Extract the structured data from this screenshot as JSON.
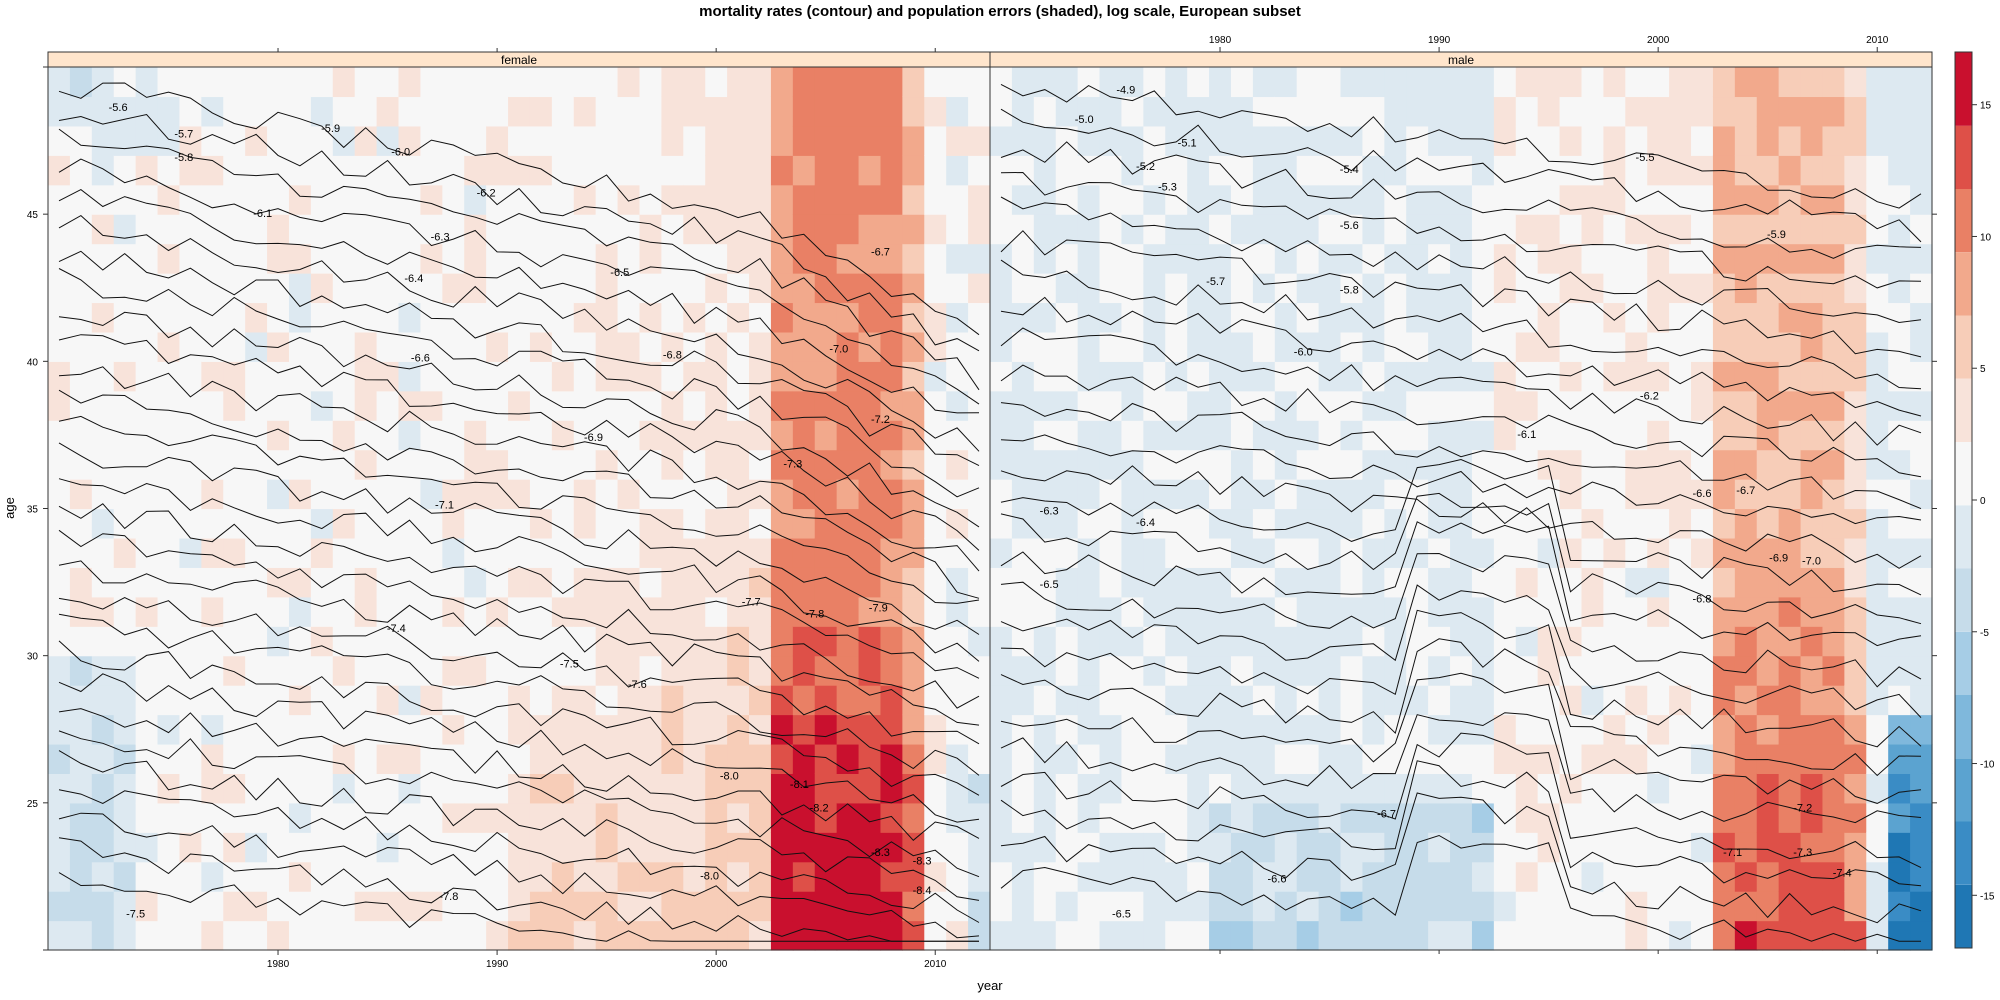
{
  "chart_data": {
    "type": "heatmap",
    "title": "mortality rates (contour) and population errors (shaded), log scale, European subset",
    "xlabel": "year",
    "ylabel": "age",
    "xlim": [
      1970,
      2012
    ],
    "ylim": [
      20,
      50
    ],
    "x_ticks": [
      1980,
      1990,
      2000,
      2010
    ],
    "y_ticks": [
      25,
      30,
      35,
      40,
      45
    ],
    "colorkey": {
      "range": [
        -17,
        17
      ],
      "ticks": [
        -15,
        -10,
        -5,
        0,
        5,
        10,
        15
      ],
      "bands": [
        {
          "from": -17,
          "to": -14.6,
          "color": "#1f77b4"
        },
        {
          "from": -14.6,
          "to": -12.2,
          "color": "#3a8cc5"
        },
        {
          "from": -12.2,
          "to": -9.8,
          "color": "#5ba3d0"
        },
        {
          "from": -9.8,
          "to": -7.4,
          "color": "#7fb8dc"
        },
        {
          "from": -7.4,
          "to": -5.0,
          "color": "#a6cde6"
        },
        {
          "from": -5.0,
          "to": -2.6,
          "color": "#c6dcea"
        },
        {
          "from": -2.6,
          "to": -0.2,
          "color": "#dde9f1"
        },
        {
          "from": -0.2,
          "to": 2.2,
          "color": "#f7f7f7"
        },
        {
          "from": 2.2,
          "to": 4.6,
          "color": "#f8e3da"
        },
        {
          "from": 4.6,
          "to": 7.0,
          "color": "#f7cdb8"
        },
        {
          "from": 7.0,
          "to": 9.4,
          "color": "#f2a98c"
        },
        {
          "from": 9.4,
          "to": 11.8,
          "color": "#e98065"
        },
        {
          "from": 11.8,
          "to": 14.2,
          "color": "#de5048"
        },
        {
          "from": 14.2,
          "to": 17,
          "color": "#c9102e"
        }
      ]
    },
    "panels": [
      {
        "strip": "female",
        "contour_levels": [
          -5.6,
          -5.7,
          -5.8,
          -5.9,
          -6.0,
          -6.1,
          -6.2,
          -6.3,
          -6.4,
          -6.5,
          -6.6,
          -6.7,
          -6.8,
          -6.9,
          -7.0,
          -7.1,
          -7.2,
          -7.3,
          -7.4,
          -7.5,
          -7.6,
          -7.7,
          -7.8,
          -7.9,
          -8.0,
          -8.1,
          -8.2,
          -8.3,
          -8.4
        ],
        "contour_labels": [
          {
            "text": "-5.6",
            "year": 1972.7,
            "age": 48.6
          },
          {
            "text": "-5.7",
            "year": 1975.7,
            "age": 47.7
          },
          {
            "text": "-5.8",
            "year": 1975.7,
            "age": 46.9
          },
          {
            "text": "-5.9",
            "year": 1982.4,
            "age": 47.9
          },
          {
            "text": "-6.0",
            "year": 1985.6,
            "age": 47.1
          },
          {
            "text": "-6.1",
            "year": 1979.3,
            "age": 45.0
          },
          {
            "text": "-6.2",
            "year": 1989.5,
            "age": 45.7
          },
          {
            "text": "-6.3",
            "year": 1987.4,
            "age": 44.2
          },
          {
            "text": "-6.4",
            "year": 1986.2,
            "age": 42.8
          },
          {
            "text": "-6.5",
            "year": 1995.6,
            "age": 43.0
          },
          {
            "text": "-6.6",
            "year": 1986.5,
            "age": 40.1
          },
          {
            "text": "-6.7",
            "year": 2007.5,
            "age": 43.7
          },
          {
            "text": "-6.8",
            "year": 1998.0,
            "age": 40.2
          },
          {
            "text": "-6.9",
            "year": 1994.4,
            "age": 37.4
          },
          {
            "text": "-7.0",
            "year": 2005.6,
            "age": 40.4
          },
          {
            "text": "-7.1",
            "year": 1987.6,
            "age": 35.1
          },
          {
            "text": "-7.2",
            "year": 2007.5,
            "age": 38.0
          },
          {
            "text": "-7.3",
            "year": 2003.5,
            "age": 36.5
          },
          {
            "text": "-7.4",
            "year": 1985.4,
            "age": 30.9
          },
          {
            "text": "-7.5",
            "year": 1993.3,
            "age": 29.7
          },
          {
            "text": "-7.6",
            "year": 1996.4,
            "age": 29.0
          },
          {
            "text": "-7.7",
            "year": 2001.6,
            "age": 31.8
          },
          {
            "text": "-7.8",
            "year": 2004.5,
            "age": 31.4
          },
          {
            "text": "-7.9",
            "year": 2007.4,
            "age": 31.6
          },
          {
            "text": "-8.0",
            "year": 2000.6,
            "age": 25.9
          },
          {
            "text": "-8.1",
            "year": 2003.8,
            "age": 25.6
          },
          {
            "text": "-8.2",
            "year": 2004.7,
            "age": 24.8
          },
          {
            "text": "-8.3",
            "year": 2007.5,
            "age": 23.3
          },
          {
            "text": "-8.3",
            "year": 2009.4,
            "age": 23.0
          },
          {
            "text": "-8.4",
            "year": 2009.4,
            "age": 22.0
          },
          {
            "text": "-8.0",
            "year": 1999.7,
            "age": 22.5
          },
          {
            "text": "-7.8",
            "year": 1987.8,
            "age": 21.8
          },
          {
            "text": "-7.5",
            "year": 1973.5,
            "age": 21.2
          }
        ]
      },
      {
        "strip": "male",
        "contour_levels": [
          -4.9,
          -5.0,
          -5.1,
          -5.2,
          -5.3,
          -5.4,
          -5.5,
          -5.6,
          -5.7,
          -5.8,
          -5.9,
          -6.0,
          -6.1,
          -6.2,
          -6.3,
          -6.4,
          -6.5,
          -6.6,
          -6.7,
          -6.8,
          -6.9,
          -7.0,
          -7.1,
          -7.2,
          -7.3,
          -7.4
        ],
        "contour_labels": [
          {
            "text": "-4.9",
            "year": 1975.7,
            "age": 49.2
          },
          {
            "text": "-5.0",
            "year": 1973.8,
            "age": 48.2
          },
          {
            "text": "-5.1",
            "year": 1978.5,
            "age": 47.4
          },
          {
            "text": "-5.2",
            "year": 1976.6,
            "age": 46.6
          },
          {
            "text": "-5.3",
            "year": 1977.6,
            "age": 45.9
          },
          {
            "text": "-5.4",
            "year": 1985.9,
            "age": 46.5
          },
          {
            "text": "-5.5",
            "year": 1999.4,
            "age": 46.9
          },
          {
            "text": "-5.6",
            "year": 1985.9,
            "age": 44.6
          },
          {
            "text": "-5.7",
            "year": 1979.8,
            "age": 42.7
          },
          {
            "text": "-5.8",
            "year": 1985.9,
            "age": 42.4
          },
          {
            "text": "-5.9",
            "year": 2005.4,
            "age": 44.3
          },
          {
            "text": "-6.0",
            "year": 1983.8,
            "age": 40.3
          },
          {
            "text": "-6.1",
            "year": 1994.0,
            "age": 37.5
          },
          {
            "text": "-6.2",
            "year": 1999.6,
            "age": 38.8
          },
          {
            "text": "-6.3",
            "year": 1972.2,
            "age": 34.9
          },
          {
            "text": "-6.4",
            "year": 1976.6,
            "age": 34.5
          },
          {
            "text": "-6.5",
            "year": 1972.2,
            "age": 32.4
          },
          {
            "text": "-6.6",
            "year": 2002.0,
            "age": 35.5
          },
          {
            "text": "-6.7",
            "year": 2004.0,
            "age": 35.6
          },
          {
            "text": "-6.8",
            "year": 2002.0,
            "age": 31.9
          },
          {
            "text": "-6.9",
            "year": 2005.5,
            "age": 33.3
          },
          {
            "text": "-7.0",
            "year": 2007.0,
            "age": 33.2
          },
          {
            "text": "-7.1",
            "year": 2003.4,
            "age": 23.3
          },
          {
            "text": "-7.2",
            "year": 2006.6,
            "age": 24.8
          },
          {
            "text": "-7.3",
            "year": 2006.6,
            "age": 23.3
          },
          {
            "text": "-7.4",
            "year": 2008.4,
            "age": 22.6
          },
          {
            "text": "-6.7",
            "year": 1987.6,
            "age": 24.6
          },
          {
            "text": "-6.6",
            "year": 1982.6,
            "age": 22.4
          },
          {
            "text": "-6.5",
            "year": 1975.5,
            "age": 21.2
          }
        ]
      }
    ]
  }
}
